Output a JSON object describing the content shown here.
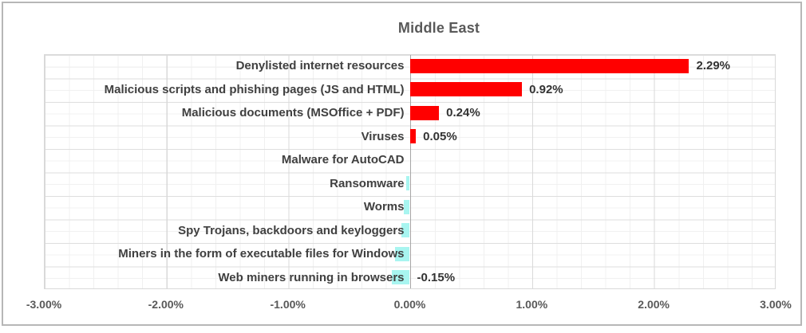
{
  "chart": {
    "title": "Middle East",
    "accent_positive_color": "#ff0000",
    "accent_negative_color": "#a8f5f0",
    "title_color": "#595959",
    "category_label_color": "#404040",
    "value_label_color": "#333333",
    "axis_label_color": "#595959"
  },
  "chart_data": {
    "type": "bar",
    "orientation": "horizontal",
    "title": "Middle East",
    "xlabel": "",
    "ylabel": "",
    "xlim": [
      -3,
      3
    ],
    "grid": "major and minor gridlines on",
    "legend": "none",
    "categories": [
      "Denylisted internet resources",
      "Malicious scripts and phishing pages (JS and HTML)",
      "Malicious documents (MSOffice + PDF)",
      "Viruses",
      "Malware for AutoCAD",
      "Ransomware",
      "Worms",
      "Spy Trojans, backdoors and keyloggers",
      "Miners in the form of executable files for Windows",
      "Web miners running in browsers"
    ],
    "values": [
      2.29,
      0.92,
      0.24,
      0.05,
      0.0,
      -0.03,
      -0.05,
      -0.07,
      -0.12,
      -0.15
    ],
    "data_labels": [
      "2.29%",
      "0.92%",
      "0.24%",
      "0.05%",
      "",
      "",
      "",
      "",
      "",
      "-0.15%"
    ],
    "x_tick_values": [
      -3,
      -2,
      -1,
      0,
      1,
      2,
      3
    ],
    "x_tick_labels": [
      "-3.00%",
      "-2.00%",
      "-1.00%",
      "0.00%",
      "1.00%",
      "2.00%",
      "3.00%"
    ],
    "bar_color_positive": "#ff0000",
    "bar_color_negative": "#a8f5f0"
  }
}
